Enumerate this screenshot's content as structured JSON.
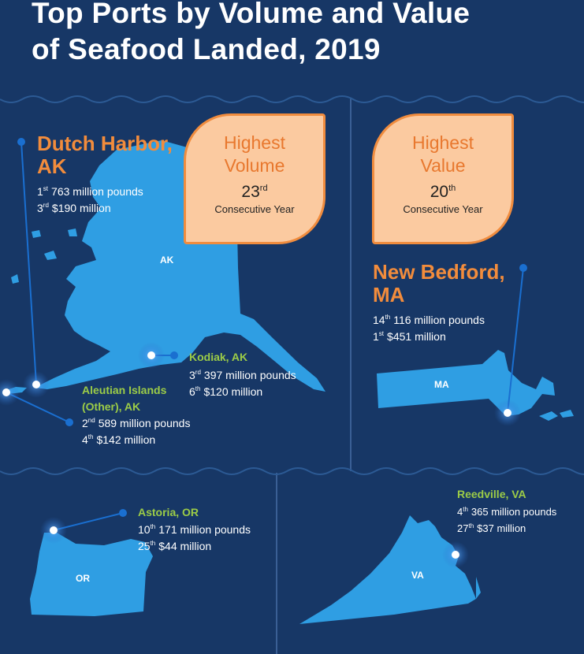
{
  "title": {
    "line1": "Top Ports by Volume and Value",
    "line2": "of Seafood Landed, 2019"
  },
  "badges": {
    "volume": {
      "line1": "Highest",
      "line2": "Volume",
      "number": "23",
      "suffix": "rd",
      "label": "Consecutive Year"
    },
    "value": {
      "line1": "Highest",
      "line2": "Value",
      "number": "20",
      "suffix": "th",
      "label": "Consecutive Year"
    }
  },
  "states": {
    "ak": "AK",
    "ma": "MA",
    "or": "OR",
    "va": "VA"
  },
  "ports": {
    "dutch_harbor": {
      "name_line1": "Dutch Harbor,",
      "name_line2": "AK",
      "volume_rank": "1",
      "volume_suffix": "st",
      "volume": "763 million pounds",
      "value_rank": "3",
      "value_suffix": "rd",
      "value": "$190 million"
    },
    "kodiak": {
      "name": "Kodiak, AK",
      "volume_rank": "3",
      "volume_suffix": "rd",
      "volume": "397 million pounds",
      "value_rank": "6",
      "value_suffix": "th",
      "value": "$120 million"
    },
    "aleutian": {
      "name_line1": "Aleutian Islands",
      "name_line2": "(Other), AK",
      "volume_rank": "2",
      "volume_suffix": "nd",
      "volume": "589 million pounds",
      "value_rank": "4",
      "value_suffix": "th",
      "value": "$142 million"
    },
    "new_bedford": {
      "name_line1": "New Bedford,",
      "name_line2": "MA",
      "volume_rank": "14",
      "volume_suffix": "th",
      "volume": "116 million pounds",
      "value_rank": "1",
      "value_suffix": "st",
      "value": "$451 million"
    },
    "astoria": {
      "name": "Astoria, OR",
      "volume_rank": "10",
      "volume_suffix": "th",
      "volume": "171 million pounds",
      "value_rank": "25",
      "value_suffix": "th",
      "value": "$44 million"
    },
    "reedville": {
      "name": "Reedville, VA",
      "volume_rank": "4",
      "volume_suffix": "th",
      "volume": "365 million pounds",
      "value_rank": "27",
      "value_suffix": "th",
      "value": "$37 million"
    }
  },
  "colors": {
    "background": "#173766",
    "land": "#2f9ee3",
    "port_name_major": "#f28c3c",
    "port_name_minor": "#9ccc47",
    "badge_fill": "#fbcaa0",
    "badge_border": "#f08c3e",
    "connector": "#1a6fd0"
  }
}
